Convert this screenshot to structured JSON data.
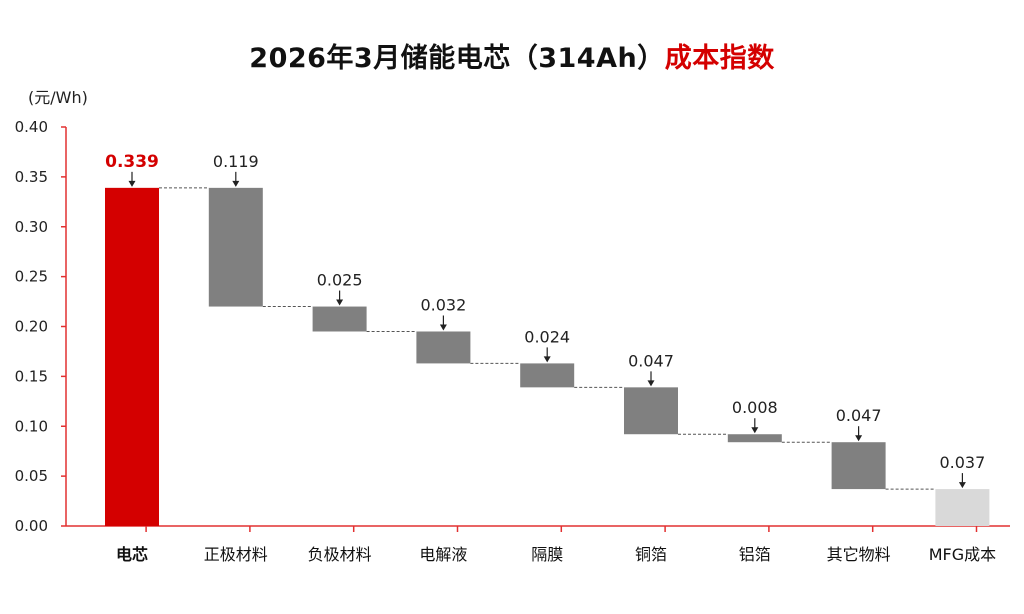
{
  "chart_data": {
    "type": "waterfall",
    "title_main": "2026年3月储能电芯（314Ah）",
    "title_highlight": "成本指数",
    "unit_label": "(元/Wh)",
    "ylim": [
      0,
      0.4
    ],
    "yticks": [
      "0.00",
      "0.05",
      "0.10",
      "0.15",
      "0.20",
      "0.25",
      "0.30",
      "0.35",
      "0.40"
    ],
    "categories": [
      "电芯",
      "正极材料",
      "负极材料",
      "电解液",
      "隔膜",
      "铜箔",
      "铝箔",
      "其它物料",
      "MFG成本"
    ],
    "total": {
      "label": "0.339",
      "value": 0.339
    },
    "components": [
      {
        "label": "0.119",
        "value": 0.119
      },
      {
        "label": "0.025",
        "value": 0.025
      },
      {
        "label": "0.032",
        "value": 0.032
      },
      {
        "label": "0.024",
        "value": 0.024
      },
      {
        "label": "0.047",
        "value": 0.047
      },
      {
        "label": "0.008",
        "value": 0.008
      },
      {
        "label": "0.047",
        "value": 0.047
      },
      {
        "label": "0.037",
        "value": 0.037
      }
    ],
    "colors": {
      "total": "#d40000",
      "component": "#808080",
      "last": "#d9d9d9",
      "axis": "#e23030",
      "text": "#222222"
    }
  }
}
